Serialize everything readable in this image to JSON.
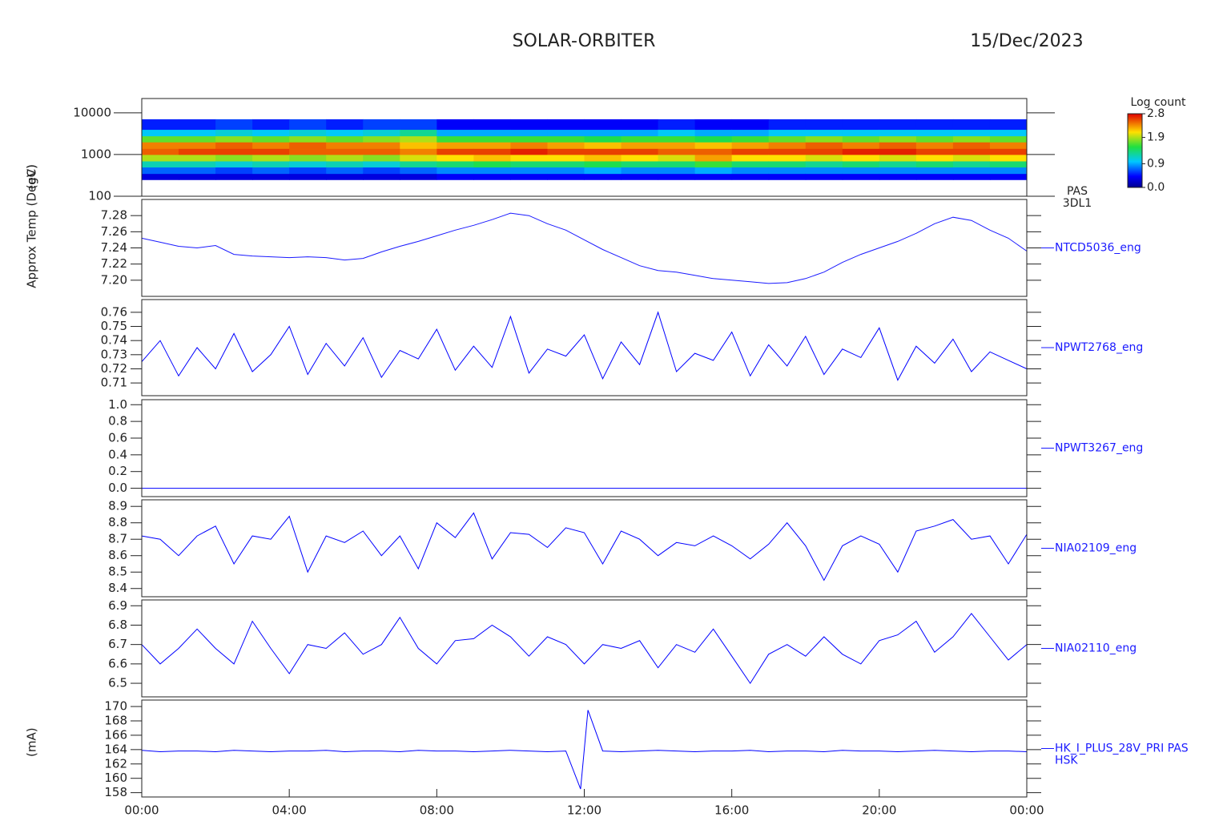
{
  "header": {
    "title": "SOLAR-ORBITER",
    "date": "15/Dec/2023"
  },
  "chart_data": [
    {
      "type": "spectrogram",
      "ylabel": "(eV)",
      "log": true,
      "labels": [
        "PAS",
        "3DL1"
      ],
      "xlim": [
        0,
        24
      ],
      "ylim": [
        100,
        22000
      ],
      "yticks": [
        100,
        1000,
        10000
      ],
      "x_bins": [
        0,
        1,
        2,
        3,
        4,
        5,
        6,
        7,
        8,
        9,
        10,
        11,
        12,
        13,
        14,
        15,
        16,
        17,
        18,
        19,
        20,
        21,
        22,
        23,
        24
      ],
      "y_bins": [
        250,
        350,
        500,
        700,
        1000,
        1400,
        2000,
        2800,
        4000,
        7000
      ],
      "values": [
        [
          0.3,
          0.7,
          1.2,
          1.9,
          2.5,
          2.4,
          1.7,
          1.0,
          0.5
        ],
        [
          0.3,
          0.7,
          1.2,
          1.9,
          2.6,
          2.4,
          1.7,
          1.0,
          0.5
        ],
        [
          0.3,
          0.6,
          1.1,
          1.8,
          2.6,
          2.5,
          1.8,
          1.1,
          0.6
        ],
        [
          0.3,
          0.7,
          1.2,
          1.9,
          2.6,
          2.4,
          1.7,
          1.0,
          0.5
        ],
        [
          0.3,
          0.6,
          1.1,
          1.8,
          2.5,
          2.5,
          1.8,
          1.1,
          0.6
        ],
        [
          0.3,
          0.7,
          1.2,
          1.9,
          2.5,
          2.4,
          1.7,
          1.0,
          0.5
        ],
        [
          0.3,
          0.6,
          1.1,
          1.8,
          2.5,
          2.4,
          1.8,
          1.1,
          0.6
        ],
        [
          0.3,
          0.7,
          1.3,
          2.0,
          2.4,
          2.2,
          1.9,
          1.3,
          0.6
        ],
        [
          0.4,
          0.8,
          1.4,
          2.1,
          2.6,
          2.3,
          1.6,
          0.9,
          0.4
        ],
        [
          0.4,
          0.8,
          1.5,
          2.2,
          2.6,
          2.3,
          1.6,
          0.9,
          0.4
        ],
        [
          0.4,
          0.8,
          1.4,
          2.1,
          2.7,
          2.4,
          1.6,
          0.9,
          0.4
        ],
        [
          0.4,
          0.8,
          1.4,
          2.1,
          2.6,
          2.3,
          1.6,
          0.9,
          0.4
        ],
        [
          0.4,
          0.9,
          1.5,
          2.2,
          2.6,
          2.2,
          1.5,
          0.9,
          0.4
        ],
        [
          0.4,
          0.8,
          1.4,
          2.1,
          2.6,
          2.3,
          1.6,
          0.9,
          0.4
        ],
        [
          0.4,
          0.8,
          1.4,
          2.0,
          2.5,
          2.3,
          1.6,
          1.0,
          0.5
        ],
        [
          0.4,
          0.9,
          1.6,
          2.3,
          2.5,
          2.2,
          1.5,
          0.9,
          0.4
        ],
        [
          0.4,
          0.8,
          1.4,
          2.1,
          2.6,
          2.3,
          1.6,
          0.9,
          0.4
        ],
        [
          0.4,
          0.8,
          1.4,
          2.1,
          2.6,
          2.4,
          1.7,
          1.0,
          0.5
        ],
        [
          0.4,
          0.8,
          1.3,
          2.0,
          2.6,
          2.5,
          1.8,
          1.0,
          0.5
        ],
        [
          0.4,
          0.8,
          1.4,
          2.1,
          2.7,
          2.4,
          1.7,
          1.0,
          0.5
        ],
        [
          0.4,
          0.8,
          1.3,
          2.0,
          2.7,
          2.5,
          1.8,
          1.0,
          0.5
        ],
        [
          0.4,
          0.8,
          1.4,
          2.1,
          2.6,
          2.4,
          1.7,
          1.0,
          0.5
        ],
        [
          0.4,
          0.8,
          1.3,
          2.0,
          2.6,
          2.5,
          1.8,
          1.0,
          0.5
        ],
        [
          0.4,
          0.8,
          1.4,
          2.1,
          2.6,
          2.4,
          1.7,
          1.0,
          0.5
        ]
      ],
      "zlabel": "Log count",
      "zlim": [
        0,
        2.8
      ],
      "zticks": [
        {
          "value": 0,
          "label": "0.0"
        },
        0.9,
        1.9,
        2.8
      ]
    },
    {
      "type": "line",
      "ylabel": "Approx Temp (DegC)",
      "xlim": [
        0,
        24
      ],
      "ylim": [
        7.18,
        7.3
      ],
      "yticks": [
        {
          "value": 7.2,
          "label": "7.20"
        },
        7.22,
        7.24,
        7.26,
        7.28
      ],
      "series": [
        {
          "name": "NTCD5036_eng",
          "color": "#1a1aff",
          "x": [
            0,
            0.5,
            1,
            1.5,
            2,
            2.5,
            3,
            3.5,
            4,
            4.5,
            5,
            5.5,
            6,
            6.5,
            7,
            7.5,
            8,
            8.5,
            9,
            9.5,
            10,
            10.5,
            11,
            11.5,
            12,
            12.5,
            13,
            13.5,
            14,
            14.5,
            15,
            15.5,
            16,
            16.5,
            17,
            17.5,
            18,
            18.5,
            19,
            19.5,
            20,
            20.5,
            21,
            21.5,
            22,
            22.5,
            23,
            23.5,
            24
          ],
          "values": [
            7.252,
            7.247,
            7.242,
            7.24,
            7.243,
            7.232,
            7.23,
            7.229,
            7.228,
            7.229,
            7.228,
            7.225,
            7.227,
            7.235,
            7.242,
            7.248,
            7.255,
            7.262,
            7.268,
            7.275,
            7.283,
            7.28,
            7.27,
            7.262,
            7.25,
            7.238,
            7.228,
            7.218,
            7.212,
            7.21,
            7.206,
            7.202,
            7.2,
            7.198,
            7.196,
            7.197,
            7.202,
            7.21,
            7.222,
            7.232,
            7.24,
            7.248,
            7.258,
            7.27,
            7.278,
            7.274,
            7.262,
            7.252,
            7.236
          ]
        }
      ]
    },
    {
      "type": "line",
      "xlim": [
        0,
        24
      ],
      "ylim": [
        0.701,
        0.769
      ],
      "yticks": [
        0.71,
        0.72,
        0.73,
        0.74,
        0.75,
        0.76
      ],
      "series": [
        {
          "name": "NPWT2768_eng",
          "color": "#0000ff",
          "x": [
            0,
            0.5,
            1,
            1.5,
            2,
            2.5,
            3,
            3.5,
            4,
            4.5,
            5,
            5.5,
            6,
            6.5,
            7,
            7.5,
            8,
            8.5,
            9,
            9.5,
            10,
            10.5,
            11,
            11.5,
            12,
            12.5,
            13,
            13.5,
            14,
            14.5,
            15,
            15.5,
            16,
            16.5,
            17,
            17.5,
            18,
            18.5,
            19,
            19.5,
            20,
            20.5,
            21,
            21.5,
            22,
            22.5,
            23,
            23.5,
            24
          ],
          "values": [
            0.725,
            0.74,
            0.715,
            0.735,
            0.72,
            0.745,
            0.718,
            0.73,
            0.75,
            0.716,
            0.738,
            0.722,
            0.742,
            0.714,
            0.733,
            0.727,
            0.748,
            0.719,
            0.736,
            0.721,
            0.757,
            0.717,
            0.734,
            0.729,
            0.744,
            0.713,
            0.739,
            0.723,
            0.76,
            0.718,
            0.731,
            0.726,
            0.746,
            0.715,
            0.737,
            0.722,
            0.743,
            0.716,
            0.734,
            0.728,
            0.749,
            0.712,
            0.736,
            0.724,
            0.741,
            0.718,
            0.732,
            0.726,
            0.72
          ]
        }
      ]
    },
    {
      "type": "line",
      "xlim": [
        0,
        24
      ],
      "ylim": [
        -0.1,
        1.06
      ],
      "yticks": [
        {
          "value": 0,
          "label": "0.0"
        },
        0.2,
        0.4,
        0.6,
        0.8,
        {
          "value": 1,
          "label": "1.0"
        }
      ],
      "series": [
        {
          "name": "NPWT3267_eng",
          "color": "#0000ff",
          "x": [
            0,
            0.5,
            1,
            1.5,
            2,
            2.5,
            3,
            3.5,
            4,
            4.5,
            5,
            5.5,
            6,
            6.5,
            7,
            7.5,
            8,
            8.5,
            9,
            9.5,
            10,
            10.5,
            11,
            11.5,
            12,
            12.5,
            13,
            13.5,
            14,
            14.5,
            15,
            15.5,
            16,
            16.5,
            17,
            17.5,
            18,
            18.5,
            19,
            19.5,
            20,
            20.5,
            21,
            21.5,
            22,
            22.5,
            23,
            23.5,
            24
          ],
          "values": [
            0,
            0,
            0,
            0,
            0,
            0,
            0,
            0,
            0,
            0,
            0,
            0,
            0,
            0,
            0,
            0,
            0,
            0,
            0,
            0,
            0,
            0,
            0,
            0,
            0,
            0,
            0,
            0,
            0,
            0,
            0,
            0,
            0,
            0,
            0,
            0,
            0,
            0,
            0,
            0,
            0,
            0,
            0,
            0,
            0,
            0,
            0,
            0,
            0
          ]
        }
      ]
    },
    {
      "type": "line",
      "xlim": [
        0,
        24
      ],
      "ylim": [
        8.35,
        8.94
      ],
      "yticks": [
        8.4,
        8.5,
        8.6,
        8.7,
        8.8,
        8.9
      ],
      "series": [
        {
          "name": "NIA02109_eng",
          "color": "#0000ff",
          "x": [
            0,
            0.5,
            1,
            1.5,
            2,
            2.5,
            3,
            3.5,
            4,
            4.5,
            5,
            5.5,
            6,
            6.5,
            7,
            7.5,
            8,
            8.5,
            9,
            9.5,
            10,
            10.5,
            11,
            11.5,
            12,
            12.5,
            13,
            13.5,
            14,
            14.5,
            15,
            15.5,
            16,
            16.5,
            17,
            17.5,
            18,
            18.5,
            19,
            19.5,
            20,
            20.5,
            21,
            21.5,
            22,
            22.5,
            23,
            23.5,
            24
          ],
          "values": [
            8.72,
            8.7,
            8.6,
            8.72,
            8.78,
            8.55,
            8.72,
            8.7,
            8.84,
            8.5,
            8.72,
            8.68,
            8.75,
            8.6,
            8.72,
            8.52,
            8.8,
            8.71,
            8.86,
            8.58,
            8.74,
            8.73,
            8.65,
            8.77,
            8.74,
            8.55,
            8.75,
            8.7,
            8.6,
            8.68,
            8.66,
            8.72,
            8.66,
            8.58,
            8.67,
            8.8,
            8.66,
            8.45,
            8.66,
            8.72,
            8.67,
            8.5,
            8.75,
            8.78,
            8.82,
            8.7,
            8.72,
            8.55,
            8.73
          ]
        }
      ]
    },
    {
      "type": "line",
      "xlim": [
        0,
        24
      ],
      "ylim": [
        6.43,
        6.93
      ],
      "yticks": [
        6.5,
        6.6,
        6.7,
        6.8,
        6.9
      ],
      "series": [
        {
          "name": "NIA02110_eng",
          "color": "#0000ff",
          "x": [
            0,
            0.5,
            1,
            1.5,
            2,
            2.5,
            3,
            3.5,
            4,
            4.5,
            5,
            5.5,
            6,
            6.5,
            7,
            7.5,
            8,
            8.5,
            9,
            9.5,
            10,
            10.5,
            11,
            11.5,
            12,
            12.5,
            13,
            13.5,
            14,
            14.5,
            15,
            15.5,
            16,
            16.5,
            17,
            17.5,
            18,
            18.5,
            19,
            19.5,
            20,
            20.5,
            21,
            21.5,
            22,
            22.5,
            23,
            23.5,
            24
          ],
          "values": [
            6.7,
            6.6,
            6.68,
            6.78,
            6.68,
            6.6,
            6.82,
            6.68,
            6.55,
            6.7,
            6.68,
            6.76,
            6.65,
            6.7,
            6.84,
            6.68,
            6.6,
            6.72,
            6.73,
            6.8,
            6.74,
            6.64,
            6.74,
            6.7,
            6.6,
            6.7,
            6.68,
            6.72,
            6.58,
            6.7,
            6.66,
            6.78,
            6.64,
            6.5,
            6.65,
            6.7,
            6.64,
            6.74,
            6.65,
            6.6,
            6.72,
            6.75,
            6.82,
            6.66,
            6.74,
            6.86,
            6.74,
            6.62,
            6.7
          ]
        }
      ]
    },
    {
      "type": "line",
      "ylabel": "(mA)",
      "source_label": "HSK",
      "xlim": [
        0,
        24
      ],
      "ylim": [
        157.4,
        170.9
      ],
      "yticks": [
        158,
        160,
        162,
        164,
        166,
        168,
        170
      ],
      "xticks": [
        {
          "value": 0,
          "label": "00:00"
        },
        {
          "value": 4,
          "label": "04:00"
        },
        {
          "value": 8,
          "label": "08:00"
        },
        {
          "value": 12,
          "label": "12:00"
        },
        {
          "value": 16,
          "label": "16:00"
        },
        {
          "value": 20,
          "label": "20:00"
        },
        {
          "value": 24,
          "label": "00:00"
        }
      ],
      "series": [
        {
          "name": "HK_I_PLUS_28V_PRI PAS",
          "color": "#0000ff",
          "x": [
            0,
            0.5,
            1,
            1.5,
            2,
            2.5,
            3,
            3.5,
            4,
            4.5,
            5,
            5.5,
            6,
            6.5,
            7,
            7.5,
            8,
            8.5,
            9,
            9.5,
            10,
            10.5,
            11,
            11.5,
            11.9,
            12.1,
            12.5,
            13,
            13.5,
            14,
            14.5,
            15,
            15.5,
            16,
            16.5,
            17,
            17.5,
            18,
            18.5,
            19,
            19.5,
            20,
            20.5,
            21,
            21.5,
            22,
            22.5,
            23,
            23.5,
            24
          ],
          "values": [
            163.9,
            163.7,
            163.8,
            163.8,
            163.7,
            163.9,
            163.8,
            163.7,
            163.8,
            163.8,
            163.9,
            163.7,
            163.8,
            163.8,
            163.7,
            163.9,
            163.8,
            163.8,
            163.7,
            163.8,
            163.9,
            163.8,
            163.7,
            163.8,
            158.5,
            169.5,
            163.8,
            163.7,
            163.8,
            163.9,
            163.8,
            163.7,
            163.8,
            163.8,
            163.9,
            163.7,
            163.8,
            163.8,
            163.7,
            163.9,
            163.8,
            163.8,
            163.7,
            163.8,
            163.9,
            163.8,
            163.7,
            163.8,
            163.8,
            163.7
          ]
        }
      ]
    }
  ]
}
